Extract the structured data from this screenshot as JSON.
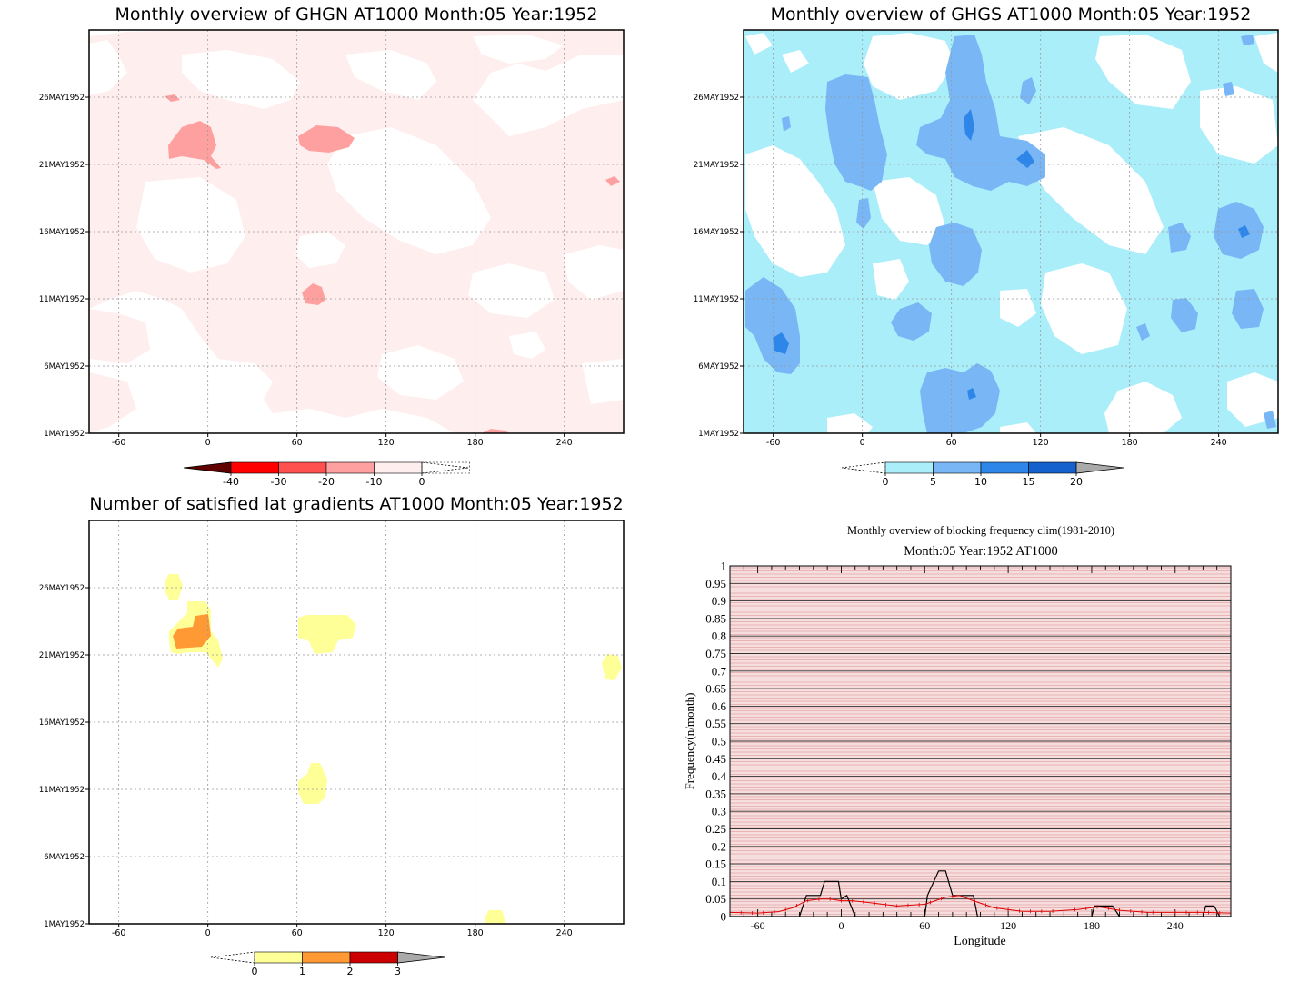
{
  "palettes": {
    "ghgn": [
      "#ffeeee",
      "#ffa0a0",
      "#ff5050",
      "#ff0000",
      "#600000"
    ],
    "ghgs": [
      "#aaeefa",
      "#78b6f6",
      "#2e86e8",
      "#1460cc",
      "#aaaaaa"
    ],
    "sat": [
      "#ffff98",
      "#ff9933",
      "#cc0000",
      "#aaaaaa"
    ],
    "grid": "#999999",
    "stripe": "#e8b4b4",
    "black_line": "#000000",
    "red_line": "#dd0000"
  },
  "lon_ticks": [
    "-60",
    "0",
    "60",
    "120",
    "180",
    "240"
  ],
  "date_ticks": [
    "1MAY1952",
    "6MAY1952",
    "11MAY1952",
    "16MAY1952",
    "21MAY1952",
    "26MAY1952"
  ],
  "chart_data": [
    {
      "type": "heatmap",
      "title": "Monthly overview of GHGN AT1000 Month:05 Year:1952",
      "x_ticks": [
        -60,
        0,
        60,
        120,
        180,
        240
      ],
      "y_ticks": [
        "1MAY1952",
        "6MAY1952",
        "11MAY1952",
        "16MAY1952",
        "21MAY1952",
        "26MAY1952"
      ],
      "xlim": [
        -80,
        280
      ],
      "colorbar": {
        "levels": [
          "-40",
          "-30",
          "-20",
          "-10",
          "0"
        ]
      }
    },
    {
      "type": "heatmap",
      "title": "Monthly overview of GHGS AT1000 Month:05 Year:1952",
      "x_ticks": [
        -60,
        0,
        60,
        120,
        180,
        240
      ],
      "y_ticks": [
        "1MAY1952",
        "6MAY1952",
        "11MAY1952",
        "16MAY1952",
        "21MAY1952",
        "26MAY1952"
      ],
      "xlim": [
        -80,
        280
      ],
      "colorbar": {
        "levels": [
          "0",
          "5",
          "10",
          "15",
          "20"
        ]
      }
    },
    {
      "type": "heatmap",
      "title": "Number of satisfied lat gradients AT1000 Month:05 Year:1952",
      "x_ticks": [
        -60,
        0,
        60,
        120,
        180,
        240
      ],
      "y_ticks": [
        "1MAY1952",
        "6MAY1952",
        "11MAY1952",
        "16MAY1952",
        "21MAY1952",
        "26MAY1952"
      ],
      "xlim": [
        -80,
        280
      ],
      "colorbar": {
        "levels": [
          "0",
          "1",
          "2",
          "3"
        ]
      }
    },
    {
      "type": "line",
      "title": "Monthly overview of blocking frequency clim(1981-2010)",
      "subtitle": "Month:05 Year:1952  AT1000",
      "xlabel": "Longitude",
      "ylabel": "Frequency(n/month)",
      "xlim": [
        -80,
        280
      ],
      "ylim": [
        0,
        1
      ],
      "y_ticks": [
        "0",
        "0.05",
        "0.1",
        "0.15",
        "0.2",
        "0.25",
        "0.3",
        "0.35",
        "0.4",
        "0.45",
        "0.5",
        "0.55",
        "0.6",
        "0.65",
        "0.7",
        "0.75",
        "0.8",
        "0.85",
        "0.9",
        "0.95",
        "1"
      ],
      "x_ticks": [
        "-60",
        "0",
        "60",
        "120",
        "180",
        "240"
      ],
      "series": [
        {
          "color": "#000000",
          "x": [
            -80,
            -30,
            -25,
            -15,
            -12,
            -2,
            0,
            4,
            10,
            60,
            62,
            70,
            75,
            80,
            95,
            98,
            100,
            180,
            182,
            195,
            200,
            250,
            260,
            262,
            268,
            272,
            280
          ],
          "y": [
            0,
            0,
            0.06,
            0.06,
            0.1,
            0.1,
            0.05,
            0.06,
            0,
            0,
            0.06,
            0.13,
            0.13,
            0.06,
            0.06,
            0,
            0,
            0,
            0.03,
            0.03,
            0,
            0,
            0,
            0.03,
            0.03,
            0,
            0
          ]
        },
        {
          "color": "#dd0000",
          "x": [
            -80,
            -60,
            -45,
            -35,
            -25,
            -15,
            -8,
            0,
            8,
            20,
            40,
            60,
            75,
            85,
            95,
            110,
            130,
            150,
            170,
            185,
            200,
            220,
            240,
            260,
            280
          ],
          "y": [
            0.012,
            0.01,
            0.014,
            0.025,
            0.045,
            0.05,
            0.05,
            0.045,
            0.045,
            0.04,
            0.03,
            0.035,
            0.055,
            0.06,
            0.045,
            0.025,
            0.015,
            0.015,
            0.02,
            0.028,
            0.018,
            0.012,
            0.012,
            0.012,
            0.01
          ]
        }
      ]
    }
  ]
}
